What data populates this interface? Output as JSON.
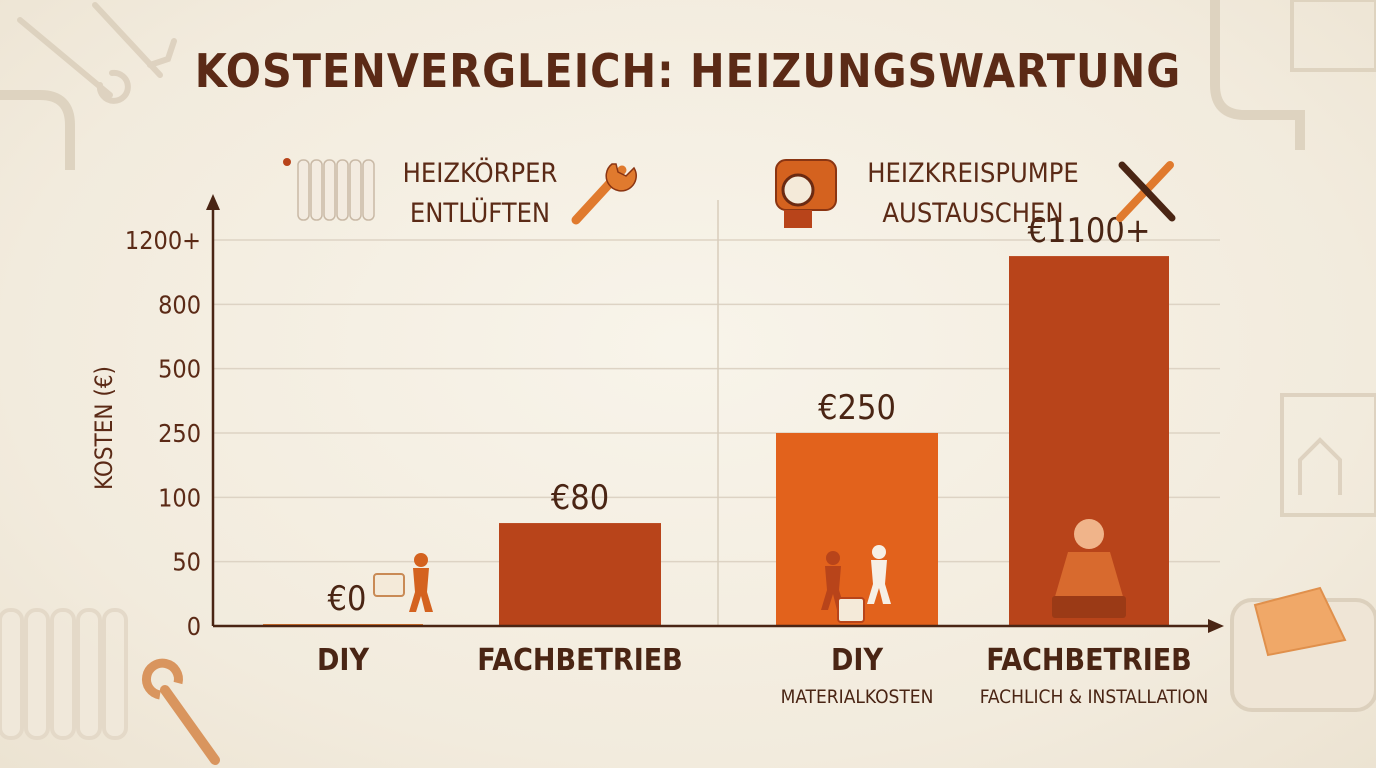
{
  "title": "KOSTENVERGLEICH: HEIZUNGSWARTUNG",
  "chart_data": {
    "type": "bar",
    "title": "KOSTENVERGLEICH: HEIZUNGSWARTUNG",
    "ylabel": "KOSTEN (€)",
    "xlabel": "",
    "y_ticks": [
      "0",
      "50",
      "100",
      "250",
      "500",
      "800",
      "1200+"
    ],
    "y_scale": "non-linear (tick labels evenly spaced)",
    "grid": true,
    "groups": [
      {
        "label_lines": [
          "HEIZKÖRPER",
          "ENTLÜFTEN"
        ],
        "icon": "radiator-icon",
        "bars": [
          {
            "category": "DIY",
            "sublabel": "",
            "value": 0,
            "label": "€0",
            "color": "#e07a2e"
          },
          {
            "category": "FACHBETRIEB",
            "sublabel": "",
            "value": 80,
            "label": "€80",
            "color": "#b8441a"
          }
        ]
      },
      {
        "label_lines": [
          "HEIZKREISPUMPE",
          "AUSTAUSCHEN"
        ],
        "icon": "pump-icon",
        "bars": [
          {
            "category": "DIY",
            "sublabel": "MATERIALKOSTEN",
            "value": 250,
            "label": "€250",
            "color": "#e2621c"
          },
          {
            "category": "FACHBETRIEB",
            "sublabel": "FACHLICH & INSTALLATION",
            "value": 1100,
            "label": "€1100+",
            "color": "#b8441a"
          }
        ]
      }
    ]
  }
}
